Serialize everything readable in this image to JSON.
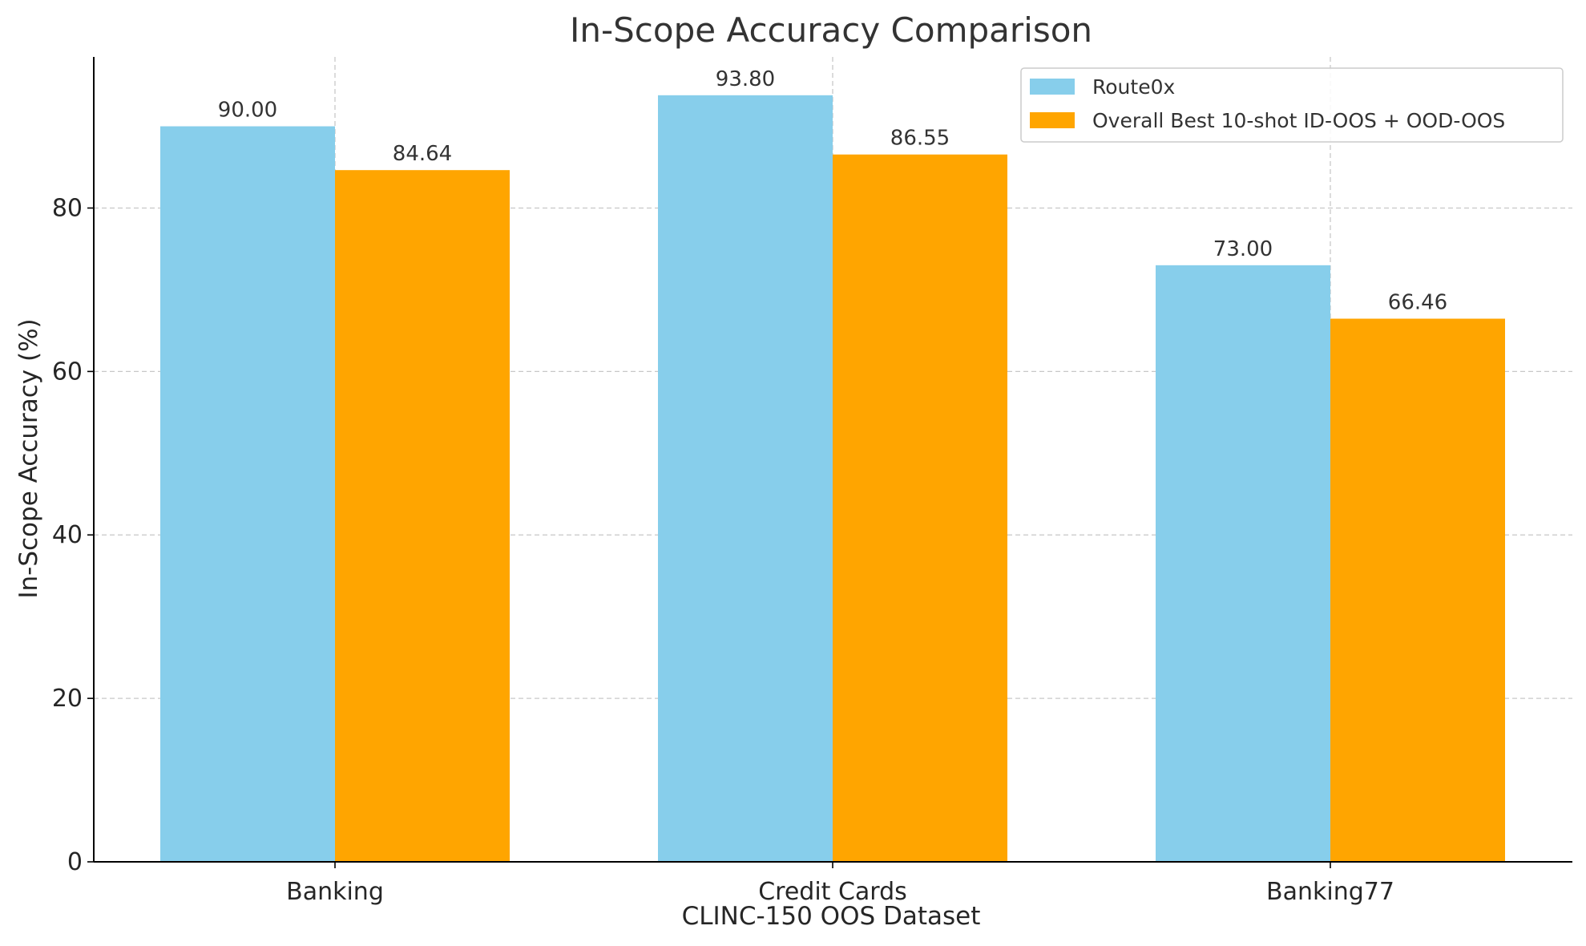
{
  "chart_data": {
    "type": "bar",
    "title": "In-Scope Accuracy Comparison",
    "xlabel": "CLINC-150 OOS Dataset",
    "ylabel": "In-Scope Accuracy (%)",
    "categories": [
      "Banking",
      "Credit Cards",
      "Banking77"
    ],
    "series": [
      {
        "name": "Route0x",
        "values": [
          90.0,
          93.8,
          73.0
        ],
        "labels": [
          "90.00",
          "93.80",
          "73.00"
        ],
        "color": "#87CEEB"
      },
      {
        "name": "Overall Best 10-shot ID-OOS + OOD-OOS",
        "values": [
          84.64,
          86.55,
          66.46
        ],
        "labels": [
          "84.64",
          "86.55",
          "66.46"
        ],
        "color": "#FFA500"
      }
    ],
    "ylim": [
      0,
      98.49
    ],
    "yticks": [
      0,
      20,
      40,
      60,
      80
    ],
    "grid": true,
    "legend_position": "top-right"
  }
}
